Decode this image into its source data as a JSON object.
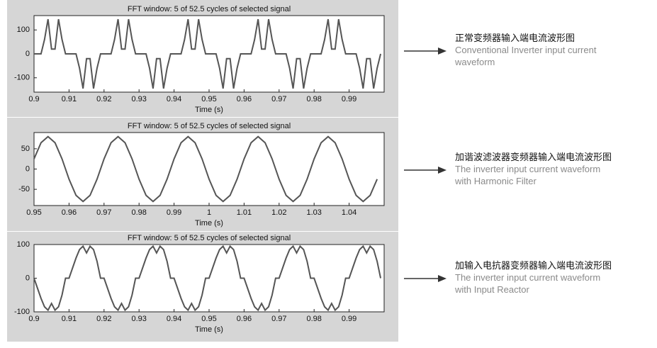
{
  "chart_data": [
    {
      "type": "line",
      "title": "FFT window: 5 of 52.5 cycles of selected signal",
      "x_label": "Time (s)",
      "annotation": {
        "title": "正常变频器输入端电流波形图",
        "text": [
          "Conventional Inverter input current",
          "waveform"
        ]
      },
      "color": "#555555",
      "xlim": [
        0.9,
        1.0
      ],
      "ylim": [
        -160,
        160
      ],
      "xticks": [
        0.9,
        0.91,
        0.92,
        0.93,
        0.94,
        0.95,
        0.96,
        0.97,
        0.98,
        0.99
      ],
      "yticks": [
        -100,
        0,
        100
      ],
      "x": [
        0.9,
        0.901,
        0.902,
        0.903,
        0.904,
        0.905,
        0.906,
        0.907,
        0.908,
        0.909,
        0.91,
        0.911,
        0.912,
        0.913,
        0.914,
        0.915,
        0.916,
        0.917,
        0.918,
        0.919,
        0.92,
        0.921,
        0.922,
        0.923,
        0.924,
        0.925,
        0.926,
        0.927,
        0.928,
        0.929,
        0.93,
        0.931,
        0.932,
        0.933,
        0.934,
        0.935,
        0.936,
        0.937,
        0.938,
        0.939,
        0.94,
        0.941,
        0.942,
        0.943,
        0.944,
        0.945,
        0.946,
        0.947,
        0.948,
        0.949,
        0.95,
        0.951,
        0.952,
        0.953,
        0.954,
        0.955,
        0.956,
        0.957,
        0.958,
        0.959,
        0.96,
        0.961,
        0.962,
        0.963,
        0.964,
        0.965,
        0.966,
        0.967,
        0.968,
        0.969,
        0.97,
        0.971,
        0.972,
        0.973,
        0.974,
        0.975,
        0.976,
        0.977,
        0.978,
        0.979,
        0.98,
        0.981,
        0.982,
        0.983,
        0.984,
        0.985,
        0.986,
        0.987,
        0.988,
        0.989,
        0.99,
        0.991,
        0.992,
        0.993,
        0.994,
        0.995,
        0.996,
        0.997,
        0.998,
        0.999
      ],
      "values": [
        0,
        0,
        0,
        60,
        145,
        20,
        20,
        145,
        60,
        0,
        0,
        0,
        0,
        -60,
        -145,
        -20,
        -20,
        -145,
        -60,
        0,
        0,
        0,
        0,
        60,
        145,
        20,
        20,
        145,
        60,
        0,
        0,
        0,
        0,
        -60,
        -145,
        -20,
        -20,
        -145,
        -60,
        0,
        0,
        0,
        0,
        60,
        145,
        20,
        20,
        145,
        60,
        0,
        0,
        0,
        0,
        -60,
        -145,
        -20,
        -20,
        -145,
        -60,
        0,
        0,
        0,
        0,
        60,
        145,
        20,
        20,
        145,
        60,
        0,
        0,
        0,
        0,
        -60,
        -145,
        -20,
        -20,
        -145,
        -60,
        0,
        0,
        0,
        0,
        60,
        145,
        20,
        20,
        145,
        60,
        0,
        0,
        0,
        0,
        -60,
        -145,
        -20,
        -20,
        -145,
        -60,
        0
      ]
    },
    {
      "type": "line",
      "title": "FFT window: 5 of 52.5 cycles of selected signal",
      "x_label": "Time (s)",
      "annotation": {
        "title": "加谐波滤波器变频器输入端电流波形图",
        "text": [
          "The  inverter input current waveform",
          "with Harmonic Filter"
        ]
      },
      "color": "#555555",
      "xlim": [
        0.95,
        1.05
      ],
      "ylim": [
        -90,
        90
      ],
      "xticks": [
        0.95,
        0.96,
        0.97,
        0.98,
        0.99,
        1,
        1.01,
        1.02,
        1.03,
        1.04
      ],
      "yticks": [
        -50,
        0,
        50
      ],
      "x": [
        0.95,
        0.952,
        0.954,
        0.956,
        0.958,
        0.96,
        0.962,
        0.964,
        0.966,
        0.968,
        0.97,
        0.972,
        0.974,
        0.976,
        0.978,
        0.98,
        0.982,
        0.984,
        0.986,
        0.988,
        0.99,
        0.992,
        0.994,
        0.996,
        0.998,
        1,
        1.002,
        1.004,
        1.006,
        1.008,
        1.01,
        1.012,
        1.014,
        1.016,
        1.018,
        1.02,
        1.022,
        1.024,
        1.026,
        1.028,
        1.03,
        1.032,
        1.034,
        1.036,
        1.038,
        1.04,
        1.042,
        1.044,
        1.046,
        1.048
      ],
      "values": [
        25,
        65,
        80,
        65,
        25,
        -25,
        -65,
        -80,
        -65,
        -25,
        25,
        65,
        80,
        65,
        25,
        -25,
        -65,
        -80,
        -65,
        -25,
        25,
        65,
        80,
        65,
        25,
        -25,
        -65,
        -80,
        -65,
        -25,
        25,
        65,
        80,
        65,
        25,
        -25,
        -65,
        -80,
        -65,
        -25,
        25,
        65,
        80,
        65,
        25,
        -25,
        -65,
        -80,
        -65,
        -25
      ]
    },
    {
      "type": "line",
      "title": "FFT window: 5 of 52.5 cycles of selected signal",
      "x_label": "Time (s)",
      "annotation": {
        "title": "加输入电抗器变频器输入端电流波形图",
        "text": [
          "The inverter input current waveform",
          "with Input Reactor"
        ]
      },
      "color": "#555555",
      "xlim": [
        0.9,
        1.0
      ],
      "ylim": [
        -100,
        100
      ],
      "xticks": [
        0.9,
        0.91,
        0.92,
        0.93,
        0.94,
        0.95,
        0.96,
        0.97,
        0.98,
        0.99
      ],
      "yticks": [
        -100,
        0,
        100
      ],
      "x": [
        0.9,
        0.901,
        0.902,
        0.903,
        0.904,
        0.905,
        0.906,
        0.907,
        0.908,
        0.909,
        0.91,
        0.911,
        0.912,
        0.913,
        0.914,
        0.915,
        0.916,
        0.917,
        0.918,
        0.919,
        0.92,
        0.921,
        0.922,
        0.923,
        0.924,
        0.925,
        0.926,
        0.927,
        0.928,
        0.929,
        0.93,
        0.931,
        0.932,
        0.933,
        0.934,
        0.935,
        0.936,
        0.937,
        0.938,
        0.939,
        0.94,
        0.941,
        0.942,
        0.943,
        0.944,
        0.945,
        0.946,
        0.947,
        0.948,
        0.949,
        0.95,
        0.951,
        0.952,
        0.953,
        0.954,
        0.955,
        0.956,
        0.957,
        0.958,
        0.959,
        0.96,
        0.961,
        0.962,
        0.963,
        0.964,
        0.965,
        0.966,
        0.967,
        0.968,
        0.969,
        0.97,
        0.971,
        0.972,
        0.973,
        0.974,
        0.975,
        0.976,
        0.977,
        0.978,
        0.979,
        0.98,
        0.981,
        0.982,
        0.983,
        0.984,
        0.985,
        0.986,
        0.987,
        0.988,
        0.989,
        0.99,
        0.991,
        0.992,
        0.993,
        0.994,
        0.995,
        0.996,
        0.997,
        0.998,
        0.999
      ],
      "values": [
        0,
        -30,
        -60,
        -85,
        -95,
        -75,
        -95,
        -85,
        -50,
        0,
        0,
        30,
        60,
        85,
        95,
        75,
        95,
        85,
        50,
        0,
        0,
        -30,
        -60,
        -85,
        -95,
        -75,
        -95,
        -85,
        -50,
        0,
        0,
        30,
        60,
        85,
        95,
        75,
        95,
        85,
        50,
        0,
        0,
        -30,
        -60,
        -85,
        -95,
        -75,
        -95,
        -85,
        -50,
        0,
        0,
        30,
        60,
        85,
        95,
        75,
        95,
        85,
        50,
        0,
        0,
        -30,
        -60,
        -85,
        -95,
        -75,
        -95,
        -85,
        -50,
        0,
        0,
        30,
        60,
        85,
        95,
        75,
        95,
        85,
        50,
        0,
        0,
        -30,
        -60,
        -85,
        -95,
        -75,
        -95,
        -85,
        -50,
        0,
        0,
        30,
        60,
        85,
        95,
        75,
        95,
        85,
        50,
        0
      ]
    }
  ]
}
